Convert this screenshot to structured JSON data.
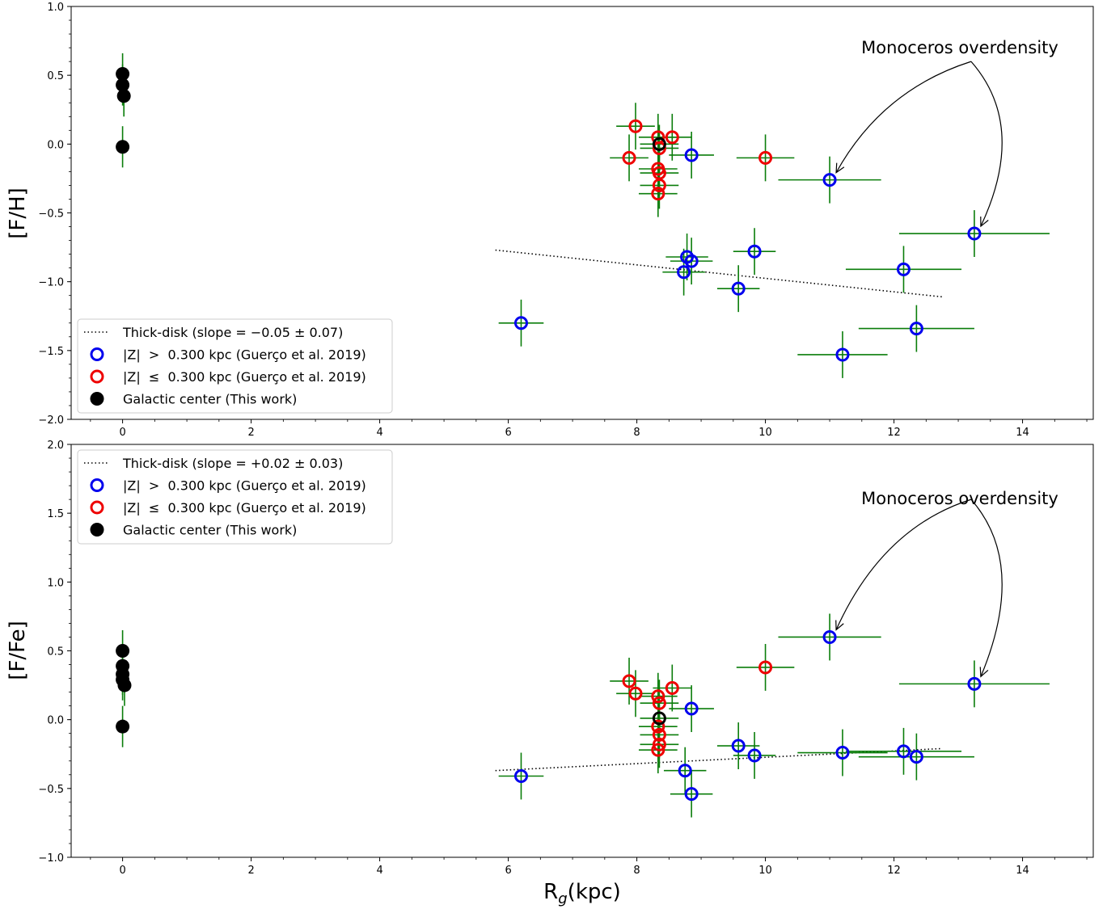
{
  "chart_data": [
    {
      "type": "scatter",
      "ylabel": "[F/H]",
      "xlabel": "",
      "xlim": [
        -0.8,
        15.1
      ],
      "ylim": [
        -2.0,
        1.0
      ],
      "xticks": [
        "0",
        "2",
        "4",
        "6",
        "8",
        "10",
        "12",
        "14"
      ],
      "yticks": [
        "1.0",
        "0.5",
        "0.0",
        "-0.5",
        "-1.0",
        "-1.5",
        "-2.0"
      ],
      "grid": false,
      "legend_position": "lower-left",
      "annotation": "Monoceros overdensity",
      "series": [
        {
          "name": "Thick-disk (slope = −0.05 ± 0.07)",
          "style": "dotted-line",
          "color": "#000000",
          "points": [
            [
              5.8,
              -0.77
            ],
            [
              12.75,
              -1.11
            ]
          ]
        },
        {
          "name": "|Z|  >  0.300 kpc (Guerço et al. 2019)",
          "style": "open-circle",
          "color": "#0000ee",
          "points": [
            {
              "x": 6.2,
              "y": -1.3,
              "xerr": 0.35,
              "yerr": 0.17
            },
            {
              "x": 8.85,
              "y": -0.08,
              "xerr": 0.35,
              "yerr": 0.17
            },
            {
              "x": 8.78,
              "y": -0.82,
              "xerr": 0.33,
              "yerr": 0.17
            },
            {
              "x": 8.85,
              "y": -0.85,
              "xerr": 0.33,
              "yerr": 0.17
            },
            {
              "x": 8.73,
              "y": -0.93,
              "xerr": 0.33,
              "yerr": 0.17
            },
            {
              "x": 9.58,
              "y": -1.05,
              "xerr": 0.33,
              "yerr": 0.17
            },
            {
              "x": 9.83,
              "y": -0.78,
              "xerr": 0.33,
              "yerr": 0.17
            },
            {
              "x": 11.0,
              "y": -0.26,
              "xerr": 0.8,
              "yerr": 0.17
            },
            {
              "x": 11.2,
              "y": -1.53,
              "xerr": 0.7,
              "yerr": 0.17
            },
            {
              "x": 12.15,
              "y": -0.91,
              "xerr": 0.9,
              "yerr": 0.17
            },
            {
              "x": 12.35,
              "y": -1.34,
              "xerr": 0.9,
              "yerr": 0.17
            },
            {
              "x": 13.25,
              "y": -0.65,
              "xerr": 1.17,
              "yerr": 0.17
            }
          ]
        },
        {
          "name": "|Z|  ≤  0.300 kpc (Guerço et al. 2019)",
          "style": "open-circle",
          "color": "#ee0000",
          "points": [
            {
              "x": 7.88,
              "y": -0.1,
              "xerr": 0.3,
              "yerr": 0.17
            },
            {
              "x": 7.98,
              "y": 0.13,
              "xerr": 0.3,
              "yerr": 0.17
            },
            {
              "x": 8.33,
              "y": 0.05,
              "xerr": 0.3,
              "yerr": 0.17
            },
            {
              "x": 8.55,
              "y": 0.05,
              "xerr": 0.3,
              "yerr": 0.17
            },
            {
              "x": 8.35,
              "y": -0.03,
              "xerr": 0.3,
              "yerr": 0.17
            },
            {
              "x": 8.33,
              "y": -0.18,
              "xerr": 0.3,
              "yerr": 0.17
            },
            {
              "x": 8.35,
              "y": -0.21,
              "xerr": 0.3,
              "yerr": 0.17
            },
            {
              "x": 8.35,
              "y": -0.3,
              "xerr": 0.3,
              "yerr": 0.17
            },
            {
              "x": 8.33,
              "y": -0.36,
              "xerr": 0.3,
              "yerr": 0.17
            },
            {
              "x": 10.0,
              "y": -0.1,
              "xerr": 0.45,
              "yerr": 0.17
            }
          ]
        },
        {
          "name": "Sun (black open ring)",
          "style": "black-ring",
          "color": "#000000",
          "points": [
            {
              "x": 8.35,
              "y": 0.0,
              "xerr": 0.3,
              "yerr": 0.1
            }
          ]
        },
        {
          "name": "Galactic center (This work)",
          "style": "filled-circle",
          "color": "#000000",
          "points": [
            {
              "x": 0.0,
              "y": 0.51,
              "xerr": 0.0,
              "yerr": 0.15
            },
            {
              "x": 0.0,
              "y": 0.43,
              "xerr": 0.0,
              "yerr": 0.15
            },
            {
              "x": 0.02,
              "y": 0.35,
              "xerr": 0.0,
              "yerr": 0.15
            },
            {
              "x": 0.0,
              "y": -0.02,
              "xerr": 0.0,
              "yerr": 0.15
            }
          ]
        }
      ],
      "arrow_targets": [
        [
          11.0,
          -0.26
        ],
        [
          13.25,
          -0.65
        ]
      ],
      "annotation_anchor": [
        13.2,
        0.6
      ]
    },
    {
      "type": "scatter",
      "ylabel": "[F/Fe]",
      "xlabel": "R_g(kpc)",
      "xlim": [
        -0.8,
        15.1
      ],
      "ylim": [
        -1.0,
        2.0
      ],
      "xticks": [
        "0",
        "2",
        "4",
        "6",
        "8",
        "10",
        "12",
        "14"
      ],
      "yticks": [
        "2.0",
        "1.5",
        "1.0",
        "0.5",
        "0.0",
        "-0.5",
        "-1.0"
      ],
      "grid": false,
      "legend_position": "upper-left",
      "annotation": "Monoceros overdensity",
      "series": [
        {
          "name": "Thick-disk (slope = +0.02 ± 0.03)",
          "style": "dotted-line",
          "color": "#000000",
          "points": [
            [
              5.8,
              -0.37
            ],
            [
              12.75,
              -0.21
            ]
          ]
        },
        {
          "name": "|Z|  >  0.300 kpc (Guerço et al. 2019)",
          "style": "open-circle",
          "color": "#0000ee",
          "points": [
            {
              "x": 6.2,
              "y": -0.41,
              "xerr": 0.35,
              "yerr": 0.17
            },
            {
              "x": 8.85,
              "y": 0.08,
              "xerr": 0.35,
              "yerr": 0.17
            },
            {
              "x": 8.75,
              "y": -0.37,
              "xerr": 0.33,
              "yerr": 0.17
            },
            {
              "x": 8.85,
              "y": -0.54,
              "xerr": 0.33,
              "yerr": 0.17
            },
            {
              "x": 9.58,
              "y": -0.19,
              "xerr": 0.33,
              "yerr": 0.17
            },
            {
              "x": 9.83,
              "y": -0.26,
              "xerr": 0.33,
              "yerr": 0.17
            },
            {
              "x": 11.0,
              "y": 0.6,
              "xerr": 0.8,
              "yerr": 0.17
            },
            {
              "x": 11.2,
              "y": -0.24,
              "xerr": 0.7,
              "yerr": 0.17
            },
            {
              "x": 12.15,
              "y": -0.23,
              "xerr": 0.9,
              "yerr": 0.17
            },
            {
              "x": 12.35,
              "y": -0.27,
              "xerr": 0.9,
              "yerr": 0.17
            },
            {
              "x": 13.25,
              "y": 0.26,
              "xerr": 1.17,
              "yerr": 0.17
            }
          ]
        },
        {
          "name": "|Z|  ≤  0.300 kpc (Guerço et al. 2019)",
          "style": "open-circle",
          "color": "#ee0000",
          "points": [
            {
              "x": 7.88,
              "y": 0.28,
              "xerr": 0.3,
              "yerr": 0.17
            },
            {
              "x": 7.98,
              "y": 0.19,
              "xerr": 0.3,
              "yerr": 0.17
            },
            {
              "x": 8.33,
              "y": 0.17,
              "xerr": 0.3,
              "yerr": 0.17
            },
            {
              "x": 8.55,
              "y": 0.23,
              "xerr": 0.3,
              "yerr": 0.17
            },
            {
              "x": 8.35,
              "y": 0.12,
              "xerr": 0.3,
              "yerr": 0.17
            },
            {
              "x": 8.33,
              "y": -0.05,
              "xerr": 0.3,
              "yerr": 0.17
            },
            {
              "x": 8.35,
              "y": -0.11,
              "xerr": 0.3,
              "yerr": 0.17
            },
            {
              "x": 8.35,
              "y": -0.18,
              "xerr": 0.3,
              "yerr": 0.17
            },
            {
              "x": 8.33,
              "y": -0.22,
              "xerr": 0.3,
              "yerr": 0.17
            },
            {
              "x": 10.0,
              "y": 0.38,
              "xerr": 0.45,
              "yerr": 0.17
            }
          ]
        },
        {
          "name": "Sun (black open ring)",
          "style": "black-ring",
          "color": "#000000",
          "points": [
            {
              "x": 8.35,
              "y": 0.01,
              "xerr": 0.3,
              "yerr": 0.1
            }
          ]
        },
        {
          "name": "Galactic center (This work)",
          "style": "filled-circle",
          "color": "#000000",
          "points": [
            {
              "x": 0.0,
              "y": 0.5,
              "xerr": 0.0,
              "yerr": 0.15
            },
            {
              "x": 0.0,
              "y": 0.39,
              "xerr": 0.0,
              "yerr": 0.15
            },
            {
              "x": 0.0,
              "y": 0.33,
              "xerr": 0.0,
              "yerr": 0.15
            },
            {
              "x": 0.0,
              "y": 0.29,
              "xerr": 0.0,
              "yerr": 0.15
            },
            {
              "x": 0.03,
              "y": 0.25,
              "xerr": 0.0,
              "yerr": 0.15
            },
            {
              "x": 0.0,
              "y": -0.05,
              "xerr": 0.0,
              "yerr": 0.15
            }
          ]
        }
      ],
      "arrow_targets": [
        [
          11.0,
          0.6
        ],
        [
          13.25,
          0.26
        ]
      ],
      "annotation_anchor": [
        13.2,
        1.6
      ]
    }
  ],
  "legends": [
    {
      "items": [
        {
          "label": "Thick-disk (slope = −0.05 ± 0.07)",
          "marker": "dotted-line"
        },
        {
          "label": "|Z|  >  0.300 kpc (Guerço et al. 2019)",
          "marker": "blue-ring"
        },
        {
          "label": "|Z|  ≤  0.300 kpc (Guerço et al. 2019)",
          "marker": "red-ring"
        },
        {
          "label": "Galactic center (This work)",
          "marker": "black-dot"
        }
      ]
    },
    {
      "items": [
        {
          "label": "Thick-disk (slope = +0.02 ± 0.03)",
          "marker": "dotted-line"
        },
        {
          "label": "|Z|  >  0.300 kpc (Guerço et al. 2019)",
          "marker": "blue-ring"
        },
        {
          "label": "|Z|  ≤  0.300 kpc (Guerço et al. 2019)",
          "marker": "red-ring"
        },
        {
          "label": "Galactic center (This work)",
          "marker": "black-dot"
        }
      ]
    }
  ],
  "colors": {
    "errorbar": "#0a7d0a",
    "blue": "#0000ee",
    "red": "#ee0000",
    "black": "#000000"
  }
}
